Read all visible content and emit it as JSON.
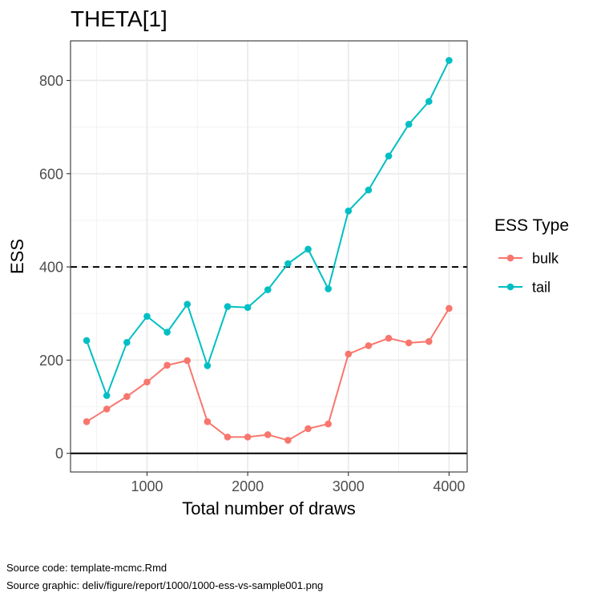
{
  "chart_data": {
    "type": "line",
    "title": "THETA[1]",
    "xlabel": "Total number of draws",
    "ylabel": "ESS",
    "xlim": [
      240,
      4180
    ],
    "ylim": [
      -40,
      885
    ],
    "x_ticks": [
      1000,
      2000,
      3000,
      4000
    ],
    "y_ticks": [
      0,
      200,
      400,
      600,
      800
    ],
    "x_tick_labels": [
      "1000",
      "2000",
      "3000",
      "4000"
    ],
    "y_tick_labels": [
      "0",
      "200",
      "400",
      "600",
      "800"
    ],
    "grid": true,
    "hline_dashed": 400,
    "hline_solid": 0,
    "legend_title": "ESS Type",
    "legend_position": "right",
    "x": [
      400,
      600,
      800,
      1000,
      1200,
      1400,
      1600,
      1800,
      2000,
      2200,
      2400,
      2600,
      2800,
      3000,
      3200,
      3400,
      3600,
      3800,
      4000
    ],
    "series": [
      {
        "name": "bulk",
        "color": "#F8766D",
        "values": [
          68,
          95,
          122,
          153,
          189,
          199,
          68,
          35,
          35,
          40,
          28,
          53,
          63,
          213,
          231,
          247,
          237,
          240,
          311
        ]
      },
      {
        "name": "tail",
        "color": "#00BFC4",
        "values": [
          242,
          124,
          238,
          294,
          260,
          320,
          188,
          315,
          313,
          351,
          407,
          438,
          353,
          520,
          565,
          638,
          706,
          755,
          843
        ]
      }
    ]
  },
  "captions": {
    "line1": "Source code: template-mcmc.Rmd",
    "line2": "Source graphic: deliv/figure/report/1000/1000-ess-vs-sample001.png"
  }
}
